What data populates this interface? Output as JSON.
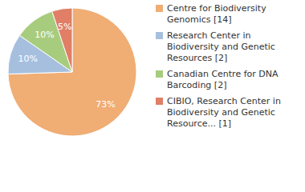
{
  "chart_data": {
    "type": "pie",
    "categories": [
      "Centre for Biodiversity Genomics [14]",
      "Research Center in Biodiversity and Genetic Resources [2]",
      "Canadian Centre for DNA Barcoding [2]",
      "CIBIO, Research Center in Biodiversity and Genetic Resource... [1]"
    ],
    "values": [
      73,
      10,
      10,
      5
    ],
    "value_labels": [
      "73%",
      "10%",
      "10%",
      "5%"
    ],
    "data_labels": true,
    "legend": "right",
    "colors": [
      "#f0ad74",
      "#a6bfdf",
      "#a8cc7e",
      "#e07e66"
    ]
  }
}
